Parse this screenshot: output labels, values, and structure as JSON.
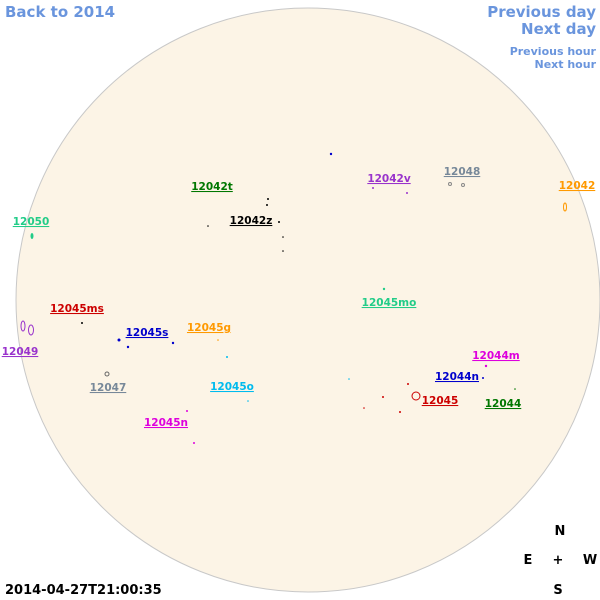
{
  "nav": {
    "back": "Back to 2014",
    "previous_day": "Previous day",
    "next_day": "Next day",
    "previous_hour": "Previous hour",
    "next_hour": "Next hour"
  },
  "regions": [
    "12042t",
    "12042v",
    "12048",
    "12042",
    "12050",
    "12042z",
    "12045mo",
    "12045ms",
    "12045s",
    "12045g",
    "12049",
    "12044m",
    "12044n",
    "12047",
    "12045o",
    "12045",
    "12044",
    "12045n"
  ],
  "compass": {
    "north": "N",
    "east": "E",
    "center": "+",
    "west": "W",
    "south": "S"
  },
  "timestamp": "2014-04-27T21:00:35"
}
